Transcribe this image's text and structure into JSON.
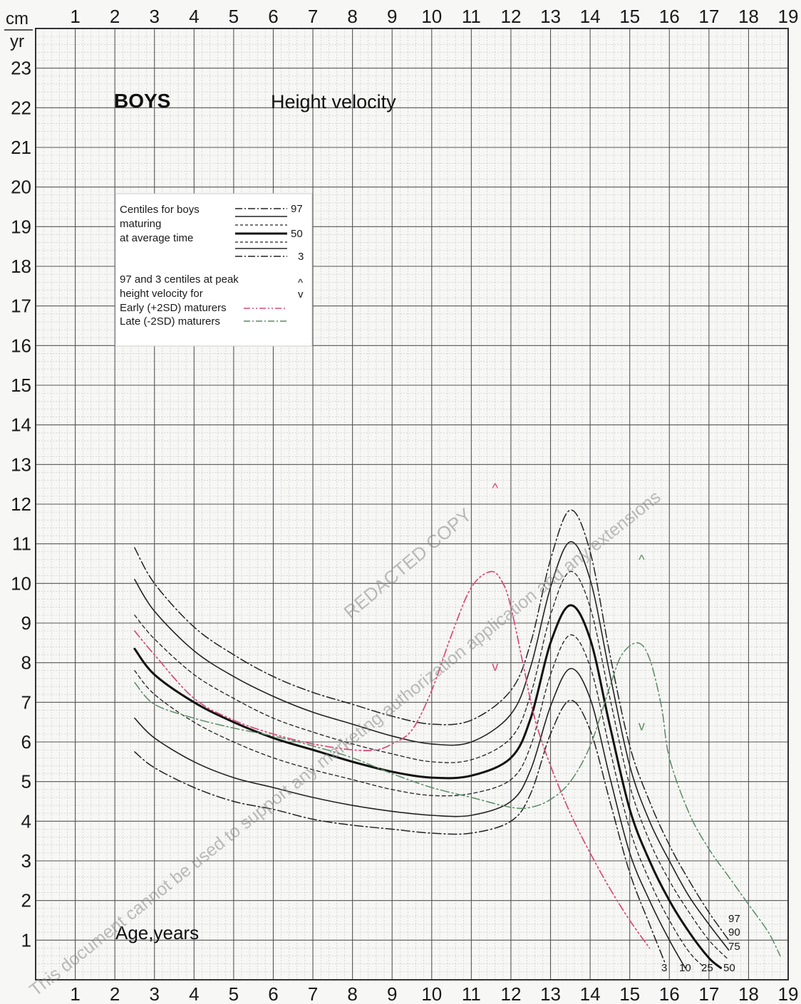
{
  "chart_data": {
    "type": "line",
    "title": "BOYS",
    "subtitle": "Height velocity",
    "unit_top": "cm",
    "unit_bottom": "yr",
    "xlabel": "Age,years",
    "xlim": [
      0,
      19
    ],
    "ylim": [
      0,
      24
    ],
    "x_ticks": [
      1,
      2,
      3,
      4,
      5,
      6,
      7,
      8,
      9,
      10,
      11,
      12,
      13,
      14,
      15,
      16,
      17,
      18,
      19
    ],
    "y_ticks": [
      1,
      2,
      3,
      4,
      5,
      6,
      7,
      8,
      9,
      10,
      11,
      12,
      13,
      14,
      15,
      16,
      17,
      18,
      19,
      20,
      21,
      22,
      23
    ],
    "grid": true,
    "legend": {
      "position": "top-left",
      "heading_lines": [
        "Centiles for boys",
        "maturing",
        "at average time"
      ],
      "centile_labels": [
        "97",
        "50",
        "3"
      ],
      "peak_lines": [
        "97 and 3 centiles at peak",
        "height velocity for"
      ],
      "peak_symbols": [
        "^",
        "v"
      ],
      "early_label": "Early (+2SD) maturers",
      "late_label": "Late (-2SD) maturers"
    },
    "series": [
      {
        "name": "97",
        "color": "#222222",
        "style": "dashdot",
        "x": [
          2.5,
          3,
          4,
          5,
          6,
          7,
          8,
          9,
          10,
          11,
          12,
          12.5,
          13,
          13.5,
          14,
          14.5,
          15,
          15.5,
          16,
          16.5,
          17,
          17.5
        ],
        "y": [
          10.9,
          10.0,
          8.9,
          8.2,
          7.65,
          7.25,
          6.95,
          6.65,
          6.45,
          6.55,
          7.3,
          8.5,
          10.6,
          11.85,
          10.8,
          8.2,
          5.9,
          4.5,
          3.4,
          2.5,
          1.7,
          1.0
        ]
      },
      {
        "name": "90",
        "color": "#222222",
        "style": "solid",
        "x": [
          2.5,
          3,
          4,
          5,
          6,
          7,
          8,
          9,
          10,
          11,
          12,
          12.5,
          13,
          13.5,
          14,
          14.5,
          15,
          15.5,
          16,
          16.5,
          17,
          17.5
        ],
        "y": [
          10.1,
          9.3,
          8.3,
          7.65,
          7.15,
          6.75,
          6.45,
          6.15,
          5.95,
          6.0,
          6.7,
          7.9,
          9.9,
          11.05,
          10.1,
          7.7,
          5.4,
          4.0,
          3.0,
          2.1,
          1.4,
          0.75
        ]
      },
      {
        "name": "75",
        "color": "#222222",
        "style": "dashed",
        "x": [
          2.5,
          3,
          4,
          5,
          6,
          7,
          8,
          9,
          10,
          11,
          12,
          12.5,
          13,
          13.5,
          14,
          14.5,
          15,
          15.5,
          16,
          16.5,
          17,
          17.5
        ],
        "y": [
          9.2,
          8.6,
          7.7,
          7.1,
          6.6,
          6.25,
          5.95,
          5.7,
          5.5,
          5.55,
          6.1,
          7.2,
          9.2,
          10.3,
          9.4,
          7.1,
          4.9,
          3.5,
          2.5,
          1.7,
          1.0,
          0.5
        ]
      },
      {
        "name": "50",
        "color": "#111111",
        "style": "solid-bold",
        "x": [
          2.5,
          3,
          4,
          5,
          6,
          7,
          8,
          9,
          10,
          11,
          12,
          12.5,
          13,
          13.5,
          14,
          14.5,
          15,
          15.5,
          16,
          16.5,
          17,
          17.3
        ],
        "y": [
          8.35,
          7.7,
          7.0,
          6.5,
          6.1,
          5.8,
          5.5,
          5.25,
          5.1,
          5.15,
          5.6,
          6.6,
          8.5,
          9.45,
          8.6,
          6.4,
          4.3,
          3.0,
          2.0,
          1.2,
          0.55,
          0.3
        ]
      },
      {
        "name": "25",
        "color": "#222222",
        "style": "dashed",
        "x": [
          2.5,
          3,
          4,
          5,
          6,
          7,
          8,
          9,
          10,
          11,
          12,
          12.5,
          13,
          13.5,
          14,
          14.5,
          15,
          15.5,
          16,
          16.5,
          16.9
        ],
        "y": [
          7.8,
          7.2,
          6.5,
          6.0,
          5.6,
          5.3,
          5.05,
          4.8,
          4.65,
          4.7,
          5.05,
          5.9,
          7.7,
          8.7,
          7.9,
          5.8,
          3.8,
          2.5,
          1.5,
          0.7,
          0.3
        ]
      },
      {
        "name": "10",
        "color": "#222222",
        "style": "solid",
        "x": [
          2.5,
          3,
          4,
          5,
          6,
          7,
          8,
          9,
          10,
          11,
          12,
          12.5,
          13,
          13.5,
          14,
          14.5,
          15,
          15.5,
          16,
          16.4
        ],
        "y": [
          6.6,
          6.1,
          5.5,
          5.1,
          4.85,
          4.6,
          4.4,
          4.25,
          4.15,
          4.15,
          4.5,
          5.3,
          6.9,
          7.85,
          7.1,
          5.1,
          3.2,
          2.0,
          1.0,
          0.3
        ]
      },
      {
        "name": "3",
        "color": "#222222",
        "style": "dashdot",
        "x": [
          2.5,
          3,
          4,
          5,
          6,
          7,
          8,
          9,
          10,
          11,
          12,
          12.5,
          13,
          13.5,
          14,
          14.5,
          15,
          15.5,
          15.9
        ],
        "y": [
          5.75,
          5.35,
          4.85,
          4.5,
          4.3,
          4.05,
          3.9,
          3.8,
          3.7,
          3.7,
          4.0,
          4.7,
          6.2,
          7.05,
          6.3,
          4.5,
          2.7,
          1.4,
          0.4
        ]
      },
      {
        "name": "Early (+2SD) maturers",
        "color": "#d64a7a",
        "style": "dashdotdot",
        "x": [
          2.5,
          3,
          4,
          5,
          6,
          7,
          8,
          8.6,
          9,
          9.5,
          10,
          10.5,
          11,
          11.5,
          11.8,
          12,
          12.3,
          12.6,
          13,
          13.5,
          14,
          14.5,
          15,
          15.5
        ],
        "y": [
          8.8,
          8.2,
          7.1,
          6.55,
          6.2,
          5.95,
          5.8,
          5.8,
          5.95,
          6.3,
          7.3,
          8.7,
          9.9,
          10.3,
          10.0,
          9.4,
          8.0,
          6.6,
          5.4,
          4.2,
          3.2,
          2.3,
          1.5,
          0.8
        ]
      },
      {
        "name": "Late (-2SD) maturers",
        "color": "#5a8c62",
        "style": "dashdot",
        "x": [
          2.5,
          3,
          4,
          5,
          6,
          7,
          8,
          9,
          10,
          11,
          12,
          12.5,
          13,
          13.5,
          14,
          14.5,
          14.8,
          15.2,
          15.5,
          15.8,
          16,
          16.5,
          17,
          17.5,
          18,
          18.5,
          18.8
        ],
        "y": [
          7.5,
          6.95,
          6.6,
          6.35,
          6.15,
          5.9,
          5.6,
          5.2,
          4.85,
          4.6,
          4.35,
          4.35,
          4.55,
          5.0,
          5.9,
          7.4,
          8.2,
          8.5,
          8.1,
          6.9,
          5.6,
          4.2,
          3.3,
          2.6,
          1.9,
          1.2,
          0.6
        ]
      }
    ],
    "peak_markers": [
      {
        "symbol": "^",
        "x": 11.6,
        "y": 12.4,
        "color": "#d64a7a"
      },
      {
        "symbol": "v",
        "x": 11.6,
        "y": 7.9,
        "color": "#d64a7a"
      },
      {
        "symbol": "^",
        "x": 15.3,
        "y": 10.6,
        "color": "#5a8c62"
      },
      {
        "symbol": "v",
        "x": 15.3,
        "y": 6.4,
        "color": "#5a8c62"
      }
    ],
    "end_labels": {
      "right": [
        "97",
        "90",
        "75"
      ],
      "bottom": [
        "3",
        "10",
        "25",
        "50"
      ]
    },
    "watermark_lines": [
      "REDACTED COPY",
      "This document cannot be used to support any marketing authorization application and any extensions"
    ]
  }
}
